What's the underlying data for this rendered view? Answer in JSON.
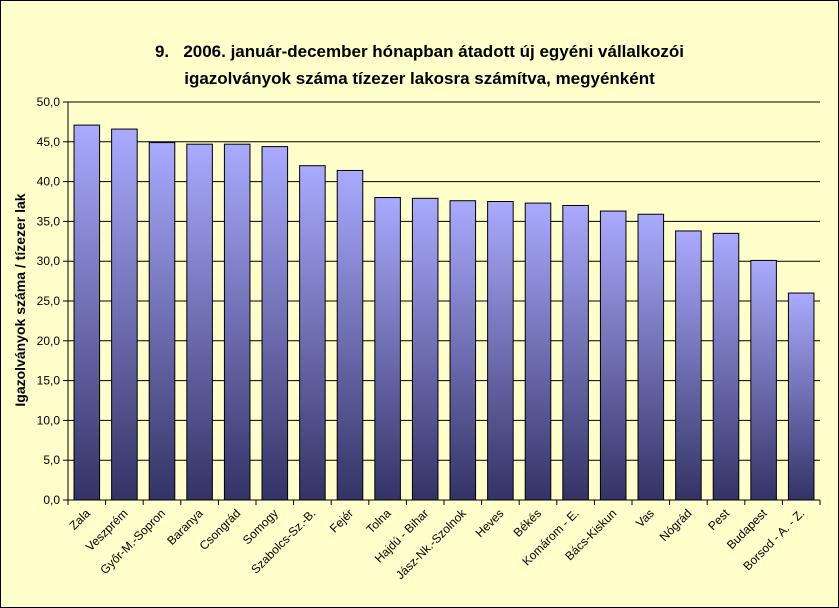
{
  "chart_data": {
    "type": "bar",
    "title_line1": "9.   2006. január-december hónapban átadott új egyéni vállalkozói",
    "title_line2": "igazolványok száma tízezer lakosra számítva, megyénként",
    "ylabel": "Igazolványok száma / tízezer lak",
    "xlabel": "",
    "ylim": [
      0,
      50
    ],
    "ytick_step": 5,
    "yticks": [
      "0,0",
      "5,0",
      "10,0",
      "15,0",
      "20,0",
      "25,0",
      "30,0",
      "35,0",
      "40,0",
      "45,0",
      "50,0"
    ],
    "grid": true,
    "legend": "none",
    "categories": [
      "Zala",
      "Veszprém",
      "Győr-M.-Sopron",
      "Baranya",
      "Csongrád",
      "Somogy",
      "Szabolcs-Sz.-B.",
      "Fejér",
      "Tolna",
      "Hajdú - Bihar",
      "Jász-Nk.-Szolnok",
      "Heves",
      "Békés",
      "Komárom - E.",
      "Bács-Kiskun",
      "Vas",
      "Nógrád",
      "Pest",
      "Budapest",
      "Borsod - A. - Z."
    ],
    "values": [
      47.1,
      46.6,
      44.9,
      44.7,
      44.7,
      44.4,
      42.0,
      41.4,
      38.0,
      37.9,
      37.6,
      37.5,
      37.3,
      37.0,
      36.3,
      35.9,
      33.8,
      33.5,
      30.1,
      26.0
    ],
    "colors": {
      "background": "#ffffcc",
      "plot_area": "#ffffcc",
      "bar_top": "#aaaaff",
      "bar_bottom": "#333366",
      "gridline": "#000000"
    }
  }
}
